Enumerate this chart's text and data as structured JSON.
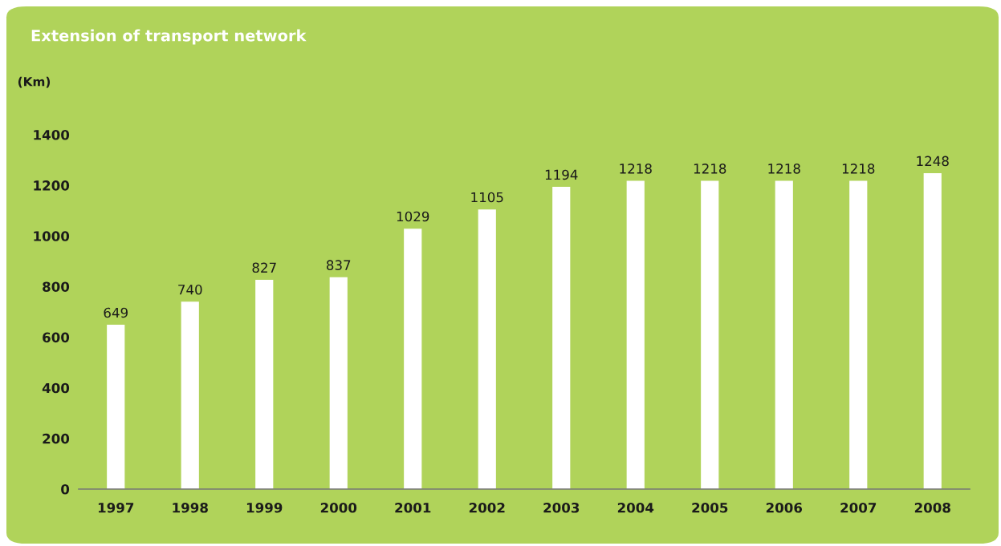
{
  "chart_data": {
    "type": "bar",
    "title": "Extension of transport network",
    "ylabel": "(Km)",
    "categories": [
      "1997",
      "1998",
      "1999",
      "2000",
      "2001",
      "2002",
      "2003",
      "2004",
      "2005",
      "2006",
      "2007",
      "2008"
    ],
    "values": [
      649,
      740,
      827,
      837,
      1029,
      1105,
      1194,
      1218,
      1218,
      1218,
      1218,
      1248
    ],
    "color": "#ffffff",
    "ylim": [
      0,
      1400
    ],
    "yticks": [
      0,
      200,
      400,
      600,
      800,
      1000,
      1200,
      1400
    ],
    "data_labels": true,
    "grid": false,
    "legend": false
  }
}
